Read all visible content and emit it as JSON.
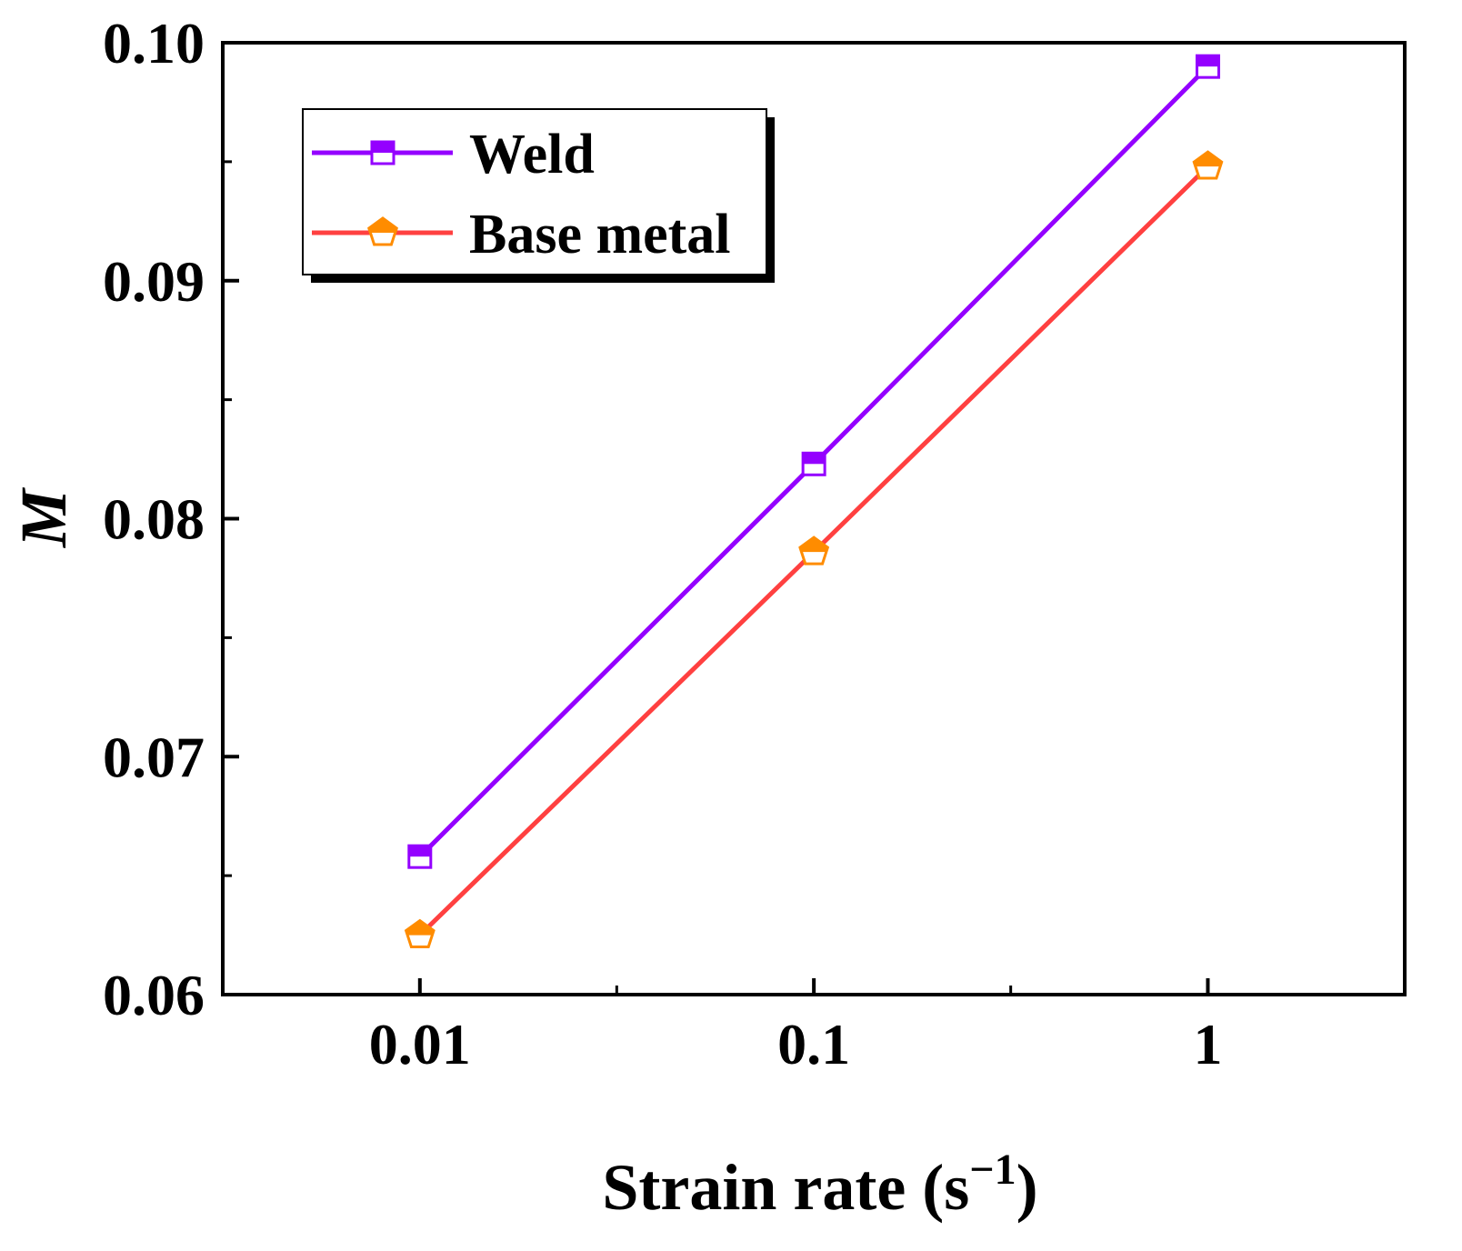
{
  "chart_data": {
    "type": "line",
    "title": "",
    "xlabel": {
      "text": "Strain rate (s",
      "superscript": "−1",
      "suffix": ")"
    },
    "ylabel": "M",
    "x_scale": "log",
    "x": [
      0.01,
      0.1,
      1
    ],
    "xlim": [
      0.00316,
      3.16
    ],
    "ylim": [
      0.06,
      0.1
    ],
    "x_tick_labels": [
      "0.01",
      "0.1",
      "1"
    ],
    "y_tick_labels": [
      "0.06",
      "0.07",
      "0.08",
      "0.09",
      "0.10"
    ],
    "y_ticks": [
      0.06,
      0.07,
      0.08,
      0.09,
      0.1
    ],
    "y_minor_ticks": [
      0.065,
      0.075,
      0.085,
      0.095
    ],
    "x_minor_ticks": [
      0.0316,
      0.316
    ],
    "grid": false,
    "legend_position": "top-left",
    "series": [
      {
        "name": "Weld",
        "values": [
          0.0658,
          0.0823,
          0.099
        ],
        "color": "#9400FF",
        "marker": "square",
        "marker_fill": "#9400FF"
      },
      {
        "name": "Base metal",
        "values": [
          0.0625,
          0.0786,
          0.0948
        ],
        "color": "#FF4040",
        "marker": "pentagon",
        "marker_fill": "#FF8C00"
      }
    ]
  }
}
